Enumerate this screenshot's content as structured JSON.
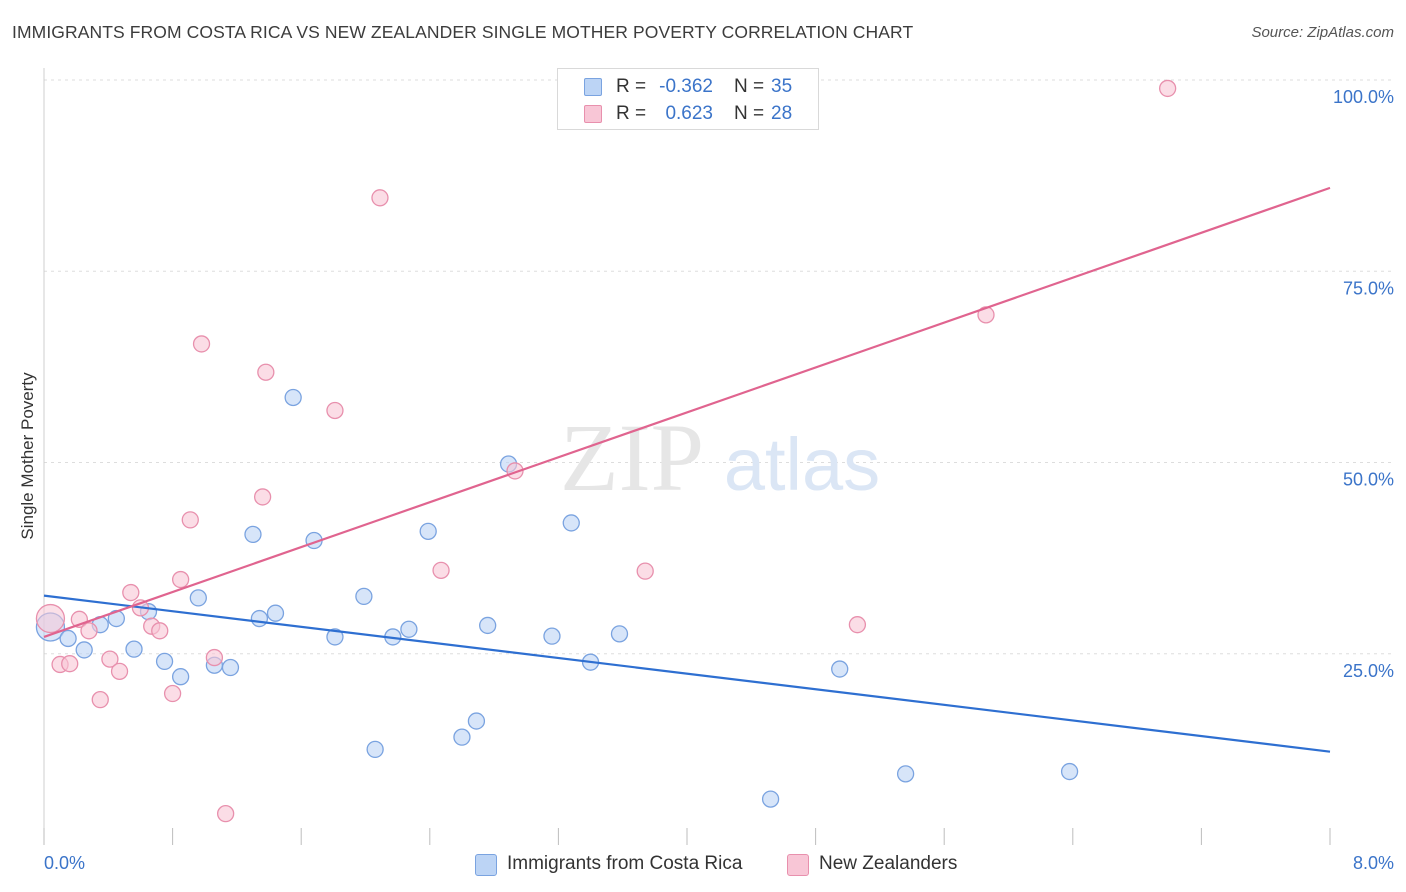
{
  "title": "IMMIGRANTS FROM COSTA RICA VS NEW ZEALANDER SINGLE MOTHER POVERTY CORRELATION CHART",
  "source": "Source: ZipAtlas.com",
  "watermark": {
    "zip": "ZIP",
    "atlas": "atlas"
  },
  "legend_top": {
    "rows": [
      {
        "r_label": "R =",
        "r_value": "-0.362",
        "n_label": "N =",
        "n_value": "35"
      },
      {
        "r_label": "R =",
        "r_value": "0.623",
        "n_label": "N =",
        "n_value": "28"
      }
    ]
  },
  "legend_bottom": {
    "series1": "Immigrants from Costa Rica",
    "series2": "New Zealanders"
  },
  "colors": {
    "blue_fill": "#bcd4f5",
    "blue_stroke": "#7aa3e0",
    "blue_line": "#2e6fd1",
    "pink_fill": "#f8c6d6",
    "pink_stroke": "#e890ad",
    "pink_line": "#e0648f",
    "tick_text": "#3b74c9",
    "grid": "#dddddd"
  },
  "chart_data": {
    "type": "scatter",
    "title": "IMMIGRANTS FROM COSTA RICA VS NEW ZEALANDER SINGLE MOTHER POVERTY CORRELATION CHART",
    "xlabel": "",
    "ylabel": "Single Mother Poverty",
    "xlim": [
      0.0,
      8.0
    ],
    "ylim": [
      0.0,
      100.0
    ],
    "x_tick_labels": {
      "min": "0.0%",
      "max": "8.0%"
    },
    "y_ticks": [
      {
        "value": 25,
        "label": "25.0%"
      },
      {
        "value": 50,
        "label": "50.0%"
      },
      {
        "value": 75,
        "label": "75.0%"
      },
      {
        "value": 100,
        "label": "100.0%"
      }
    ],
    "grid": true,
    "series": [
      {
        "name": "Immigrants from Costa Rica",
        "color": "blue",
        "r": -0.362,
        "n": 35,
        "trend": {
          "x": [
            0.0,
            8.0
          ],
          "y": [
            32.6,
            12.2
          ]
        },
        "points": [
          {
            "x": 0.04,
            "y": 28.5,
            "big": true
          },
          {
            "x": 0.15,
            "y": 27.0
          },
          {
            "x": 0.25,
            "y": 25.5
          },
          {
            "x": 0.35,
            "y": 28.8
          },
          {
            "x": 0.45,
            "y": 29.6
          },
          {
            "x": 0.56,
            "y": 25.6
          },
          {
            "x": 0.65,
            "y": 30.5
          },
          {
            "x": 0.75,
            "y": 24.0
          },
          {
            "x": 0.85,
            "y": 22.0
          },
          {
            "x": 0.96,
            "y": 32.3
          },
          {
            "x": 1.06,
            "y": 23.5
          },
          {
            "x": 1.16,
            "y": 23.2
          },
          {
            "x": 1.3,
            "y": 40.6
          },
          {
            "x": 1.34,
            "y": 29.6
          },
          {
            "x": 1.44,
            "y": 30.3
          },
          {
            "x": 1.55,
            "y": 58.5
          },
          {
            "x": 1.68,
            "y": 39.8
          },
          {
            "x": 1.81,
            "y": 27.2
          },
          {
            "x": 1.99,
            "y": 32.5
          },
          {
            "x": 2.06,
            "y": 12.5
          },
          {
            "x": 2.17,
            "y": 27.2
          },
          {
            "x": 2.27,
            "y": 28.2
          },
          {
            "x": 2.39,
            "y": 41.0
          },
          {
            "x": 2.6,
            "y": 14.1
          },
          {
            "x": 2.69,
            "y": 16.2
          },
          {
            "x": 2.76,
            "y": 28.7
          },
          {
            "x": 2.89,
            "y": 49.8
          },
          {
            "x": 3.16,
            "y": 27.3
          },
          {
            "x": 3.28,
            "y": 42.1
          },
          {
            "x": 3.4,
            "y": 23.9
          },
          {
            "x": 3.58,
            "y": 27.6
          },
          {
            "x": 4.52,
            "y": 6.0
          },
          {
            "x": 4.95,
            "y": 23.0
          },
          {
            "x": 5.36,
            "y": 9.3
          },
          {
            "x": 6.38,
            "y": 9.6
          }
        ]
      },
      {
        "name": "New Zealanders",
        "color": "pink",
        "r": 0.623,
        "n": 28,
        "trend": {
          "x": [
            0.0,
            8.0
          ],
          "y": [
            27.2,
            85.9
          ]
        },
        "points": [
          {
            "x": 0.04,
            "y": 29.6,
            "big": true
          },
          {
            "x": 0.1,
            "y": 23.6
          },
          {
            "x": 0.16,
            "y": 23.7
          },
          {
            "x": 0.22,
            "y": 29.5
          },
          {
            "x": 0.28,
            "y": 28.0
          },
          {
            "x": 0.35,
            "y": 19.0
          },
          {
            "x": 0.41,
            "y": 24.3
          },
          {
            "x": 0.47,
            "y": 22.7
          },
          {
            "x": 0.54,
            "y": 33.0
          },
          {
            "x": 0.6,
            "y": 31.0
          },
          {
            "x": 0.67,
            "y": 28.6
          },
          {
            "x": 0.72,
            "y": 28.0
          },
          {
            "x": 0.8,
            "y": 19.8
          },
          {
            "x": 0.85,
            "y": 34.7
          },
          {
            "x": 0.91,
            "y": 42.5
          },
          {
            "x": 0.98,
            "y": 65.5
          },
          {
            "x": 1.06,
            "y": 24.5
          },
          {
            "x": 1.13,
            "y": 4.1
          },
          {
            "x": 1.36,
            "y": 45.5
          },
          {
            "x": 1.38,
            "y": 61.8
          },
          {
            "x": 1.81,
            "y": 56.8
          },
          {
            "x": 2.09,
            "y": 84.6
          },
          {
            "x": 2.47,
            "y": 35.9
          },
          {
            "x": 2.93,
            "y": 48.9
          },
          {
            "x": 3.74,
            "y": 35.8
          },
          {
            "x": 5.06,
            "y": 28.8
          },
          {
            "x": 5.86,
            "y": 69.3
          },
          {
            "x": 6.99,
            "y": 98.9
          }
        ]
      }
    ]
  }
}
